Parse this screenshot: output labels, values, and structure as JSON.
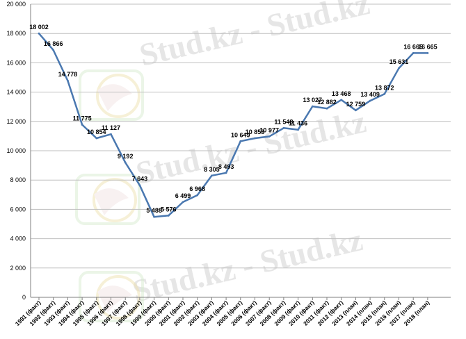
{
  "chart_data": {
    "type": "line",
    "title": "",
    "xlabel": "",
    "ylabel": "",
    "ylim": [
      0,
      20000
    ],
    "ytick_step": 2000,
    "grid": true,
    "legend": "none",
    "line_color": "#4a78b0",
    "watermark": "Stud.kz - Stud.kz",
    "categories": [
      "1991 (факт)",
      "1992 (факт)",
      "1993 (факт)",
      "1994 (факт)",
      "1995 (факт)",
      "1996 (факт)",
      "1997 (факт)",
      "1998 (факт)",
      "1999 (факт)",
      "2000 (факт)",
      "2001 (факт)",
      "2002 (факт)",
      "2003 (факт)",
      "2004 (факт)",
      "2005 (факт)",
      "2006 (факт)",
      "2007 (факт)",
      "2008 (факт)",
      "2009 (факт)",
      "2010 (факт)",
      "2011 (факт)",
      "2012 (факт)",
      "2013 (план)",
      "2014 (план)",
      "2015 (план)",
      "2016 (план)",
      "2017 (план)",
      "2018 (план)"
    ],
    "values": [
      18002,
      16866,
      14778,
      11775,
      10854,
      11127,
      9192,
      7643,
      5488,
      5576,
      6499,
      6968,
      8305,
      8493,
      10649,
      10853,
      10977,
      11548,
      11436,
      13027,
      12882,
      13468,
      12759,
      13409,
      13872,
      15631,
      16665,
      16665
    ],
    "value_labels": [
      "18 002",
      "16 866",
      "14 778",
      "11 775",
      "10 854",
      "11 127",
      "9 192",
      "7 643",
      "5 488",
      "5 576",
      "6 499",
      "6 968",
      "8 305",
      "8 493",
      "10 649",
      "10 853",
      "10 977",
      "11 548",
      "11 436",
      "13 027",
      "12 882",
      "13 468",
      "12 759",
      "13 409",
      "13 872",
      "15 631",
      "16 665",
      "16 665"
    ],
    "ytick_labels": [
      "0",
      "2 000",
      "4 000",
      "6 000",
      "8 000",
      "10 000",
      "12 000",
      "14 000",
      "16 000",
      "18 000",
      "20 000"
    ]
  }
}
